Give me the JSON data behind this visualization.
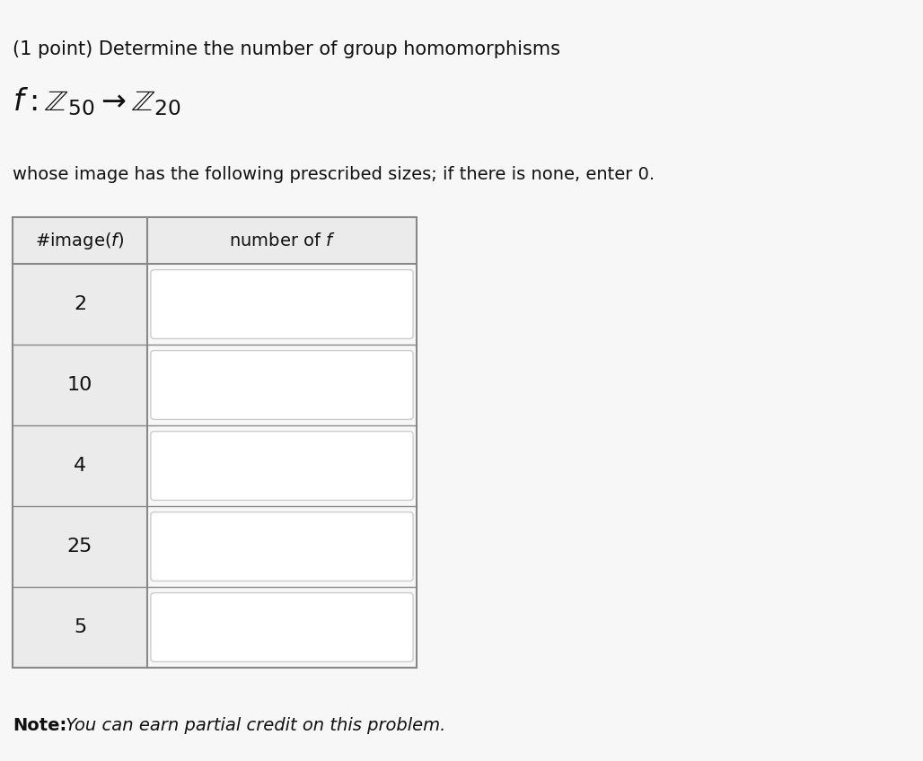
{
  "background_color": "#f7f7f7",
  "title_line1": "(1 point) Determine the number of group homomorphisms",
  "subtitle": "whose image has the following prescribed sizes; if there is none, enter 0.",
  "col1_header": "#image(ƒ)",
  "col2_header": "number of ƒ",
  "rows": [
    "2",
    "10",
    "4",
    "25",
    "5"
  ],
  "note_bold": "Note:",
  "note_italic": " You can earn partial credit on this problem.",
  "header_bg": "#ebebeb",
  "row_bg_left": "#ebebeb",
  "row_bg_right": "#f7f7f7",
  "input_box_color": "#ffffff",
  "border_color": "#888888",
  "input_border_color": "#cccccc",
  "text_color": "#111111",
  "font_size_title": 15,
  "font_size_formula": 24,
  "font_size_text": 14,
  "font_size_table_header": 14,
  "font_size_table_body": 16,
  "font_size_note": 14
}
